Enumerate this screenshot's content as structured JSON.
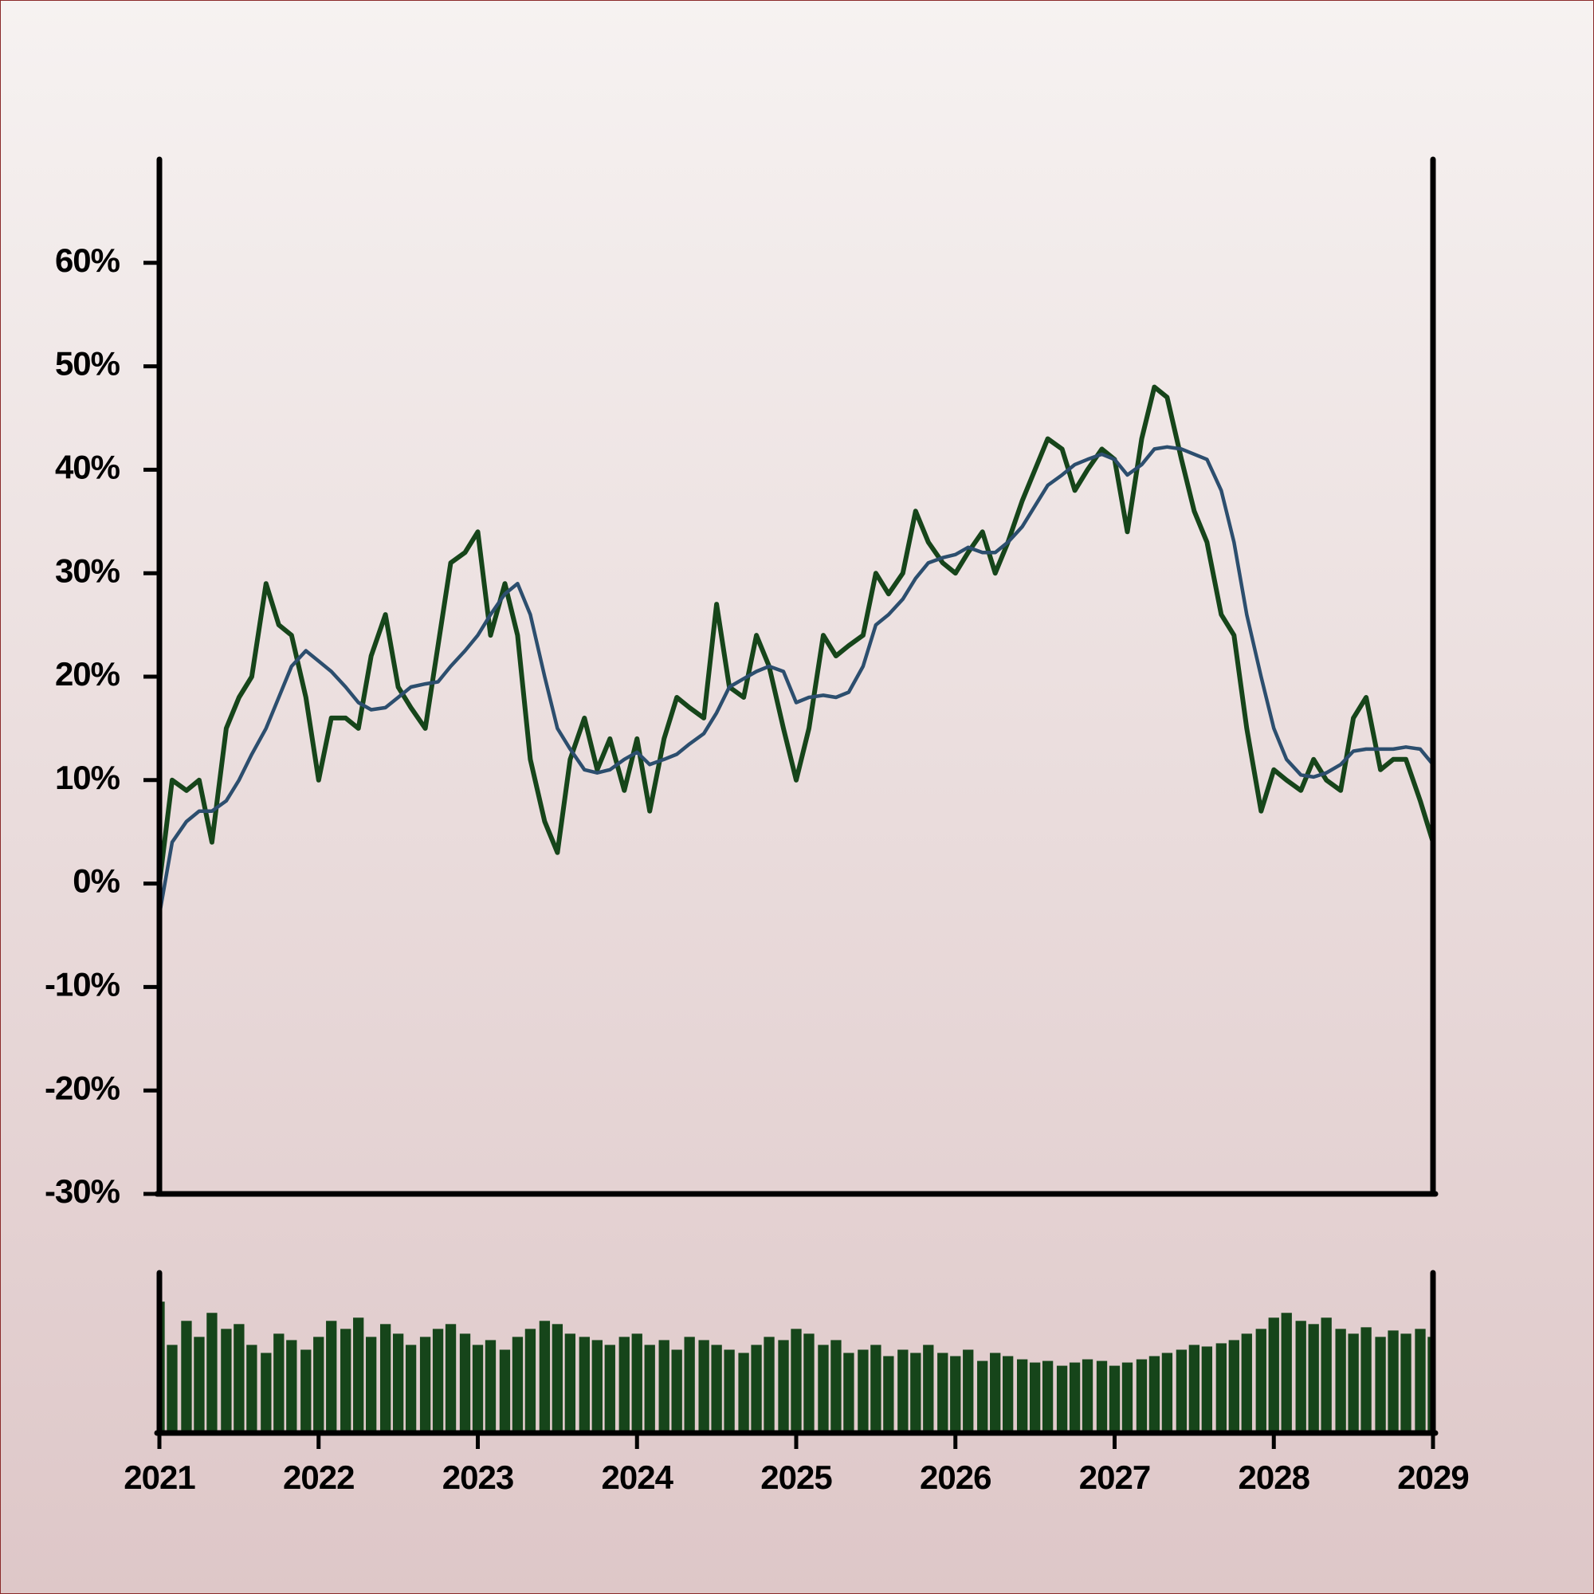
{
  "chart_data": {
    "type": "line",
    "x": [
      2021.0,
      2021.08,
      2021.17,
      2021.25,
      2021.33,
      2021.42,
      2021.5,
      2021.58,
      2021.67,
      2021.75,
      2021.83,
      2021.92,
      2022.0,
      2022.08,
      2022.17,
      2022.25,
      2022.33,
      2022.42,
      2022.5,
      2022.58,
      2022.67,
      2022.75,
      2022.83,
      2022.92,
      2023.0,
      2023.08,
      2023.17,
      2023.25,
      2023.33,
      2023.42,
      2023.5,
      2023.58,
      2023.67,
      2023.75,
      2023.83,
      2023.92,
      2024.0,
      2024.08,
      2024.17,
      2024.25,
      2024.33,
      2024.42,
      2024.5,
      2024.58,
      2024.67,
      2024.75,
      2024.83,
      2024.92,
      2025.0,
      2025.08,
      2025.17,
      2025.25,
      2025.33,
      2025.42,
      2025.5,
      2025.58,
      2025.67,
      2025.75,
      2025.83,
      2025.92,
      2026.0,
      2026.08,
      2026.17,
      2026.25,
      2026.33,
      2026.42,
      2026.5,
      2026.58,
      2026.67,
      2026.75,
      2026.83,
      2026.92,
      2027.0,
      2027.08,
      2027.17,
      2027.25,
      2027.33,
      2027.42,
      2027.5,
      2027.58,
      2027.67,
      2027.75,
      2027.83,
      2027.92,
      2028.0,
      2028.08,
      2028.17,
      2028.25,
      2028.33,
      2028.42,
      2028.5,
      2028.58,
      2028.67,
      2028.75,
      2028.83,
      2028.92,
      2029.0
    ],
    "xlim": [
      2021,
      2029
    ],
    "xticks": [
      2021,
      2022,
      2023,
      2024,
      2025,
      2026,
      2027,
      2028,
      2029
    ],
    "ylim": [
      -30,
      70
    ],
    "yticks": [
      {
        "value": -30,
        "label": "-30%"
      },
      {
        "value": -20,
        "label": "-20%"
      },
      {
        "value": -10,
        "label": "-10%"
      },
      {
        "value": 0,
        "label": "0%"
      },
      {
        "value": 10,
        "label": "10%"
      },
      {
        "value": 20,
        "label": "20%"
      },
      {
        "value": 30,
        "label": "30%"
      },
      {
        "value": 40,
        "label": "40%"
      },
      {
        "value": 50,
        "label": "50%"
      },
      {
        "value": 60,
        "label": "60%"
      }
    ],
    "series": [
      {
        "color": "#16451a",
        "values": [
          0,
          10,
          9,
          10,
          4,
          15,
          18,
          20,
          29,
          25,
          24,
          18,
          10,
          16,
          16,
          15,
          22,
          26,
          19,
          17,
          15,
          23,
          31,
          32,
          34,
          24,
          29,
          24,
          12,
          6,
          3,
          12,
          16,
          11,
          14,
          9,
          14,
          7,
          14,
          18,
          17,
          16,
          27,
          19,
          18,
          24,
          21,
          15,
          10,
          15,
          24,
          22,
          23,
          24,
          30,
          28,
          30,
          36,
          33,
          31,
          30,
          32,
          34,
          30,
          33,
          37,
          40,
          43,
          42,
          38,
          40,
          42,
          41,
          34,
          43,
          48,
          47,
          41,
          36,
          33,
          26,
          24,
          15,
          7,
          11,
          10,
          9,
          12,
          10,
          9,
          16,
          18,
          11,
          12,
          12,
          8,
          4
        ]
      },
      {
        "color": "#2c4e6e",
        "values": [
          -3,
          4,
          6,
          7,
          7,
          8,
          10,
          12.5,
          15,
          18,
          21,
          22.5,
          21.5,
          20.5,
          19,
          17.5,
          16.8,
          17,
          18,
          19,
          19.3,
          19.5,
          21,
          22.5,
          24,
          26,
          28,
          29,
          26,
          20,
          15,
          13,
          11,
          10.7,
          11,
          12,
          12.7,
          11.5,
          12,
          12.5,
          13.5,
          14.5,
          16.5,
          19,
          19.8,
          20.5,
          21,
          20.5,
          17.5,
          18,
          18.2,
          18,
          18.5,
          21,
          25,
          26,
          27.5,
          29.5,
          31,
          31.5,
          31.8,
          32.5,
          32,
          32,
          33,
          34.5,
          36.5,
          38.5,
          39.5,
          40.5,
          41,
          41.5,
          41,
          39.5,
          40.5,
          42,
          42.2,
          42,
          41.5,
          41,
          38,
          33,
          26,
          20,
          15,
          12,
          10.5,
          10.3,
          10.7,
          11.5,
          12.8,
          13,
          13,
          13,
          13.2,
          13,
          11.5
        ]
      }
    ],
    "volume": {
      "type": "bar",
      "color": "#16451a",
      "ylim": [
        0,
        100
      ],
      "values": [
        82,
        55,
        70,
        60,
        75,
        65,
        68,
        55,
        50,
        62,
        58,
        52,
        60,
        70,
        65,
        72,
        60,
        68,
        62,
        55,
        60,
        65,
        68,
        62,
        55,
        58,
        52,
        60,
        65,
        70,
        68,
        62,
        60,
        58,
        55,
        60,
        62,
        55,
        58,
        52,
        60,
        58,
        55,
        52,
        50,
        55,
        60,
        58,
        65,
        62,
        55,
        58,
        50,
        52,
        55,
        48,
        52,
        50,
        55,
        50,
        48,
        52,
        45,
        50,
        48,
        46,
        44,
        45,
        42,
        44,
        46,
        45,
        42,
        44,
        46,
        48,
        50,
        52,
        55,
        54,
        56,
        58,
        62,
        65,
        72,
        75,
        70,
        68,
        72,
        65,
        62,
        66,
        60,
        64,
        62,
        65,
        60
      ]
    }
  }
}
